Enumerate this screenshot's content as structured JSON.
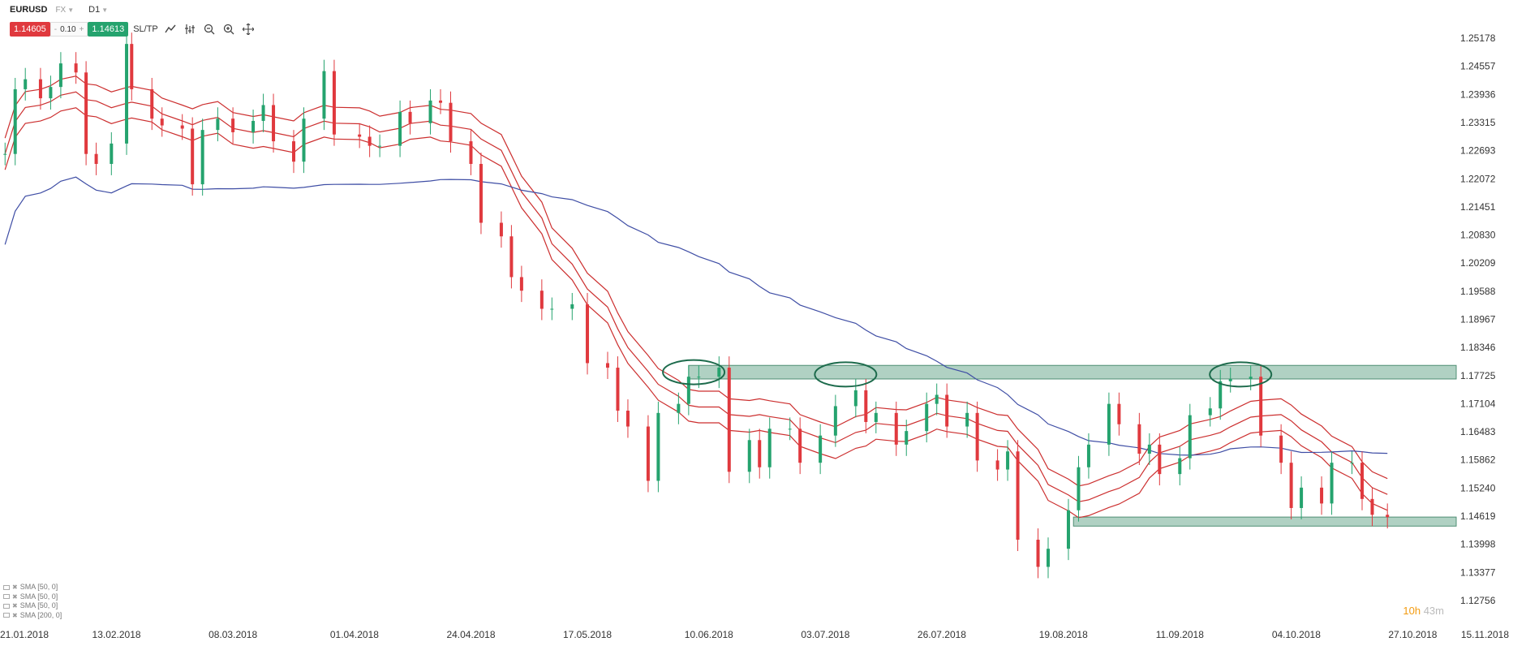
{
  "header": {
    "symbol": "EURUSD",
    "instrument_type": "FX",
    "timeframe": "D1",
    "sell_price": "1.14605",
    "volume": "0.10",
    "buy_price": "1.14613",
    "sltp_label": "SL/TP",
    "minus": "-",
    "plus": "+"
  },
  "icons": [
    "chart-type-icon",
    "indicators-icon",
    "zoom-out-icon",
    "zoom-in-icon",
    "crosshair-icon"
  ],
  "indicators": [
    {
      "label": "SMA [50, 0]",
      "color": "#e0393e"
    },
    {
      "label": "SMA [50, 0]",
      "color": "#e0393e"
    },
    {
      "label": "SMA [50, 0]",
      "color": "#e0393e"
    },
    {
      "label": "SMA [200, 0]",
      "color": "#3f4ea5"
    }
  ],
  "countdown": {
    "hours": "10h",
    "minutes": "43m"
  },
  "colors": {
    "bull": "#25a36e",
    "bear": "#e0393e",
    "sma_red": "#cc2f2f",
    "sma_blue": "#3f4ea5",
    "zone_fill": "#7fb59e",
    "zone_edge": "#4f8f74",
    "ellipse": "#1d6b4c"
  },
  "chart_data": {
    "type": "candlestick",
    "instrument": "EURUSD",
    "timeframe": "D1",
    "y_tick_labels": [
      "1.25178",
      "1.24557",
      "1.23936",
      "1.23315",
      "1.22693",
      "1.22072",
      "1.21451",
      "1.20830",
      "1.20209",
      "1.19588",
      "1.18967",
      "1.18346",
      "1.17725",
      "1.17104",
      "1.16483",
      "1.15862",
      "1.15240",
      "1.14619",
      "1.13998",
      "1.13377",
      "1.12756"
    ],
    "ylim": [
      1.12756,
      1.25178
    ],
    "x_tick_labels": [
      "21.01.2018",
      "13.02.2018",
      "08.03.2018",
      "01.04.2018",
      "24.04.2018",
      "17.05.2018",
      "10.06.2018",
      "03.07.2018",
      "26.07.2018",
      "19.08.2018",
      "11.09.2018",
      "04.10.2018",
      "27.10.2018",
      "15.11.2018"
    ],
    "xlim": [
      "2018-01-21",
      "2018-11-15"
    ],
    "x_tick_dates": [
      "2018-01-21",
      "2018-02-13",
      "2018-03-08",
      "2018-04-01",
      "2018-04-24",
      "2018-05-17",
      "2018-06-10",
      "2018-07-03",
      "2018-07-26",
      "2018-08-19",
      "2018-09-11",
      "2018-10-04",
      "2018-10-27",
      "2018-11-15"
    ],
    "series_close": [
      [
        "2018-01-22",
        1.2262
      ],
      [
        "2018-01-24",
        1.2405
      ],
      [
        "2018-01-26",
        1.2427
      ],
      [
        "2018-01-29",
        1.2385
      ],
      [
        "2018-01-31",
        1.241
      ],
      [
        "2018-02-02",
        1.2462
      ],
      [
        "2018-02-05",
        1.2442
      ],
      [
        "2018-02-07",
        1.2262
      ],
      [
        "2018-02-09",
        1.224
      ],
      [
        "2018-02-12",
        1.2285
      ],
      [
        "2018-02-15",
        1.2505
      ],
      [
        "2018-02-16",
        1.2405
      ],
      [
        "2018-02-20",
        1.234
      ],
      [
        "2018-02-22",
        1.2325
      ],
      [
        "2018-02-26",
        1.2318
      ],
      [
        "2018-02-28",
        1.2195
      ],
      [
        "2018-03-02",
        1.2315
      ],
      [
        "2018-03-05",
        1.234
      ],
      [
        "2018-03-08",
        1.231
      ],
      [
        "2018-03-12",
        1.2335
      ],
      [
        "2018-03-14",
        1.237
      ],
      [
        "2018-03-16",
        1.229
      ],
      [
        "2018-03-20",
        1.2245
      ],
      [
        "2018-03-22",
        1.234
      ],
      [
        "2018-03-26",
        1.2445
      ],
      [
        "2018-03-28",
        1.2305
      ],
      [
        "2018-04-02",
        1.23
      ],
      [
        "2018-04-04",
        1.228
      ],
      [
        "2018-04-06",
        1.228
      ],
      [
        "2018-04-10",
        1.2355
      ],
      [
        "2018-04-12",
        1.233
      ],
      [
        "2018-04-16",
        1.238
      ],
      [
        "2018-04-18",
        1.2375
      ],
      [
        "2018-04-20",
        1.229
      ],
      [
        "2018-04-24",
        1.224
      ],
      [
        "2018-04-26",
        1.211
      ],
      [
        "2018-04-30",
        1.208
      ],
      [
        "2018-05-02",
        1.199
      ],
      [
        "2018-05-04",
        1.196
      ],
      [
        "2018-05-08",
        1.192
      ],
      [
        "2018-05-10",
        1.192
      ],
      [
        "2018-05-14",
        1.193
      ],
      [
        "2018-05-17",
        1.18
      ],
      [
        "2018-05-21",
        1.179
      ],
      [
        "2018-05-23",
        1.1695
      ],
      [
        "2018-05-25",
        1.166
      ],
      [
        "2018-05-29",
        1.154
      ],
      [
        "2018-05-31",
        1.169
      ],
      [
        "2018-06-04",
        1.171
      ],
      [
        "2018-06-06",
        1.177
      ],
      [
        "2018-06-08",
        1.177
      ],
      [
        "2018-06-12",
        1.179
      ],
      [
        "2018-06-14",
        1.156
      ],
      [
        "2018-06-18",
        1.163
      ],
      [
        "2018-06-20",
        1.157
      ],
      [
        "2018-06-22",
        1.1655
      ],
      [
        "2018-06-26",
        1.1655
      ],
      [
        "2018-06-28",
        1.158
      ],
      [
        "2018-07-02",
        1.164
      ],
      [
        "2018-07-05",
        1.1705
      ],
      [
        "2018-07-09",
        1.174
      ],
      [
        "2018-07-11",
        1.167
      ],
      [
        "2018-07-13",
        1.169
      ],
      [
        "2018-07-17",
        1.162
      ],
      [
        "2018-07-19",
        1.165
      ],
      [
        "2018-07-23",
        1.171
      ],
      [
        "2018-07-25",
        1.173
      ],
      [
        "2018-07-27",
        1.166
      ],
      [
        "2018-07-31",
        1.169
      ],
      [
        "2018-08-02",
        1.1585
      ],
      [
        "2018-08-06",
        1.1565
      ],
      [
        "2018-08-08",
        1.1605
      ],
      [
        "2018-08-10",
        1.141
      ],
      [
        "2018-08-14",
        1.135
      ],
      [
        "2018-08-16",
        1.139
      ],
      [
        "2018-08-20",
        1.1475
      ],
      [
        "2018-08-22",
        1.157
      ],
      [
        "2018-08-24",
        1.162
      ],
      [
        "2018-08-28",
        1.171
      ],
      [
        "2018-08-30",
        1.1665
      ],
      [
        "2018-09-03",
        1.16
      ],
      [
        "2018-09-05",
        1.162
      ],
      [
        "2018-09-07",
        1.1555
      ],
      [
        "2018-09-11",
        1.159
      ],
      [
        "2018-09-13",
        1.1685
      ],
      [
        "2018-09-17",
        1.17
      ],
      [
        "2018-09-19",
        1.176
      ],
      [
        "2018-09-21",
        1.1765
      ],
      [
        "2018-09-25",
        1.177
      ],
      [
        "2018-09-27",
        1.164
      ],
      [
        "2018-10-01",
        1.158
      ],
      [
        "2018-10-03",
        1.148
      ],
      [
        "2018-10-05",
        1.1525
      ],
      [
        "2018-10-09",
        1.149
      ],
      [
        "2018-10-11",
        1.158
      ],
      [
        "2018-10-15",
        1.158
      ],
      [
        "2018-10-17",
        1.15
      ],
      [
        "2018-10-19",
        1.1465
      ],
      [
        "2018-10-22",
        1.146
      ]
    ],
    "indicators": [
      "SMA [50, 0]",
      "SMA [50, 0]",
      "SMA [50, 0]",
      "SMA [200, 0]"
    ],
    "annotations": [
      {
        "type": "zone",
        "from": "2018-06-06",
        "to": "2018-11-15",
        "price_low": 1.1765,
        "price_high": 1.1795
      },
      {
        "type": "zone",
        "from": "2018-08-21",
        "to": "2018-11-12",
        "price_low": 1.144,
        "price_high": 1.146
      },
      {
        "type": "ellipse",
        "center_date": "2018-06-07",
        "price": 1.178
      },
      {
        "type": "ellipse",
        "center_date": "2018-07-07",
        "price": 1.1775
      },
      {
        "type": "ellipse",
        "center_date": "2018-09-23",
        "price": 1.1775
      }
    ],
    "grid": false,
    "legend_position": "bottom-left"
  }
}
